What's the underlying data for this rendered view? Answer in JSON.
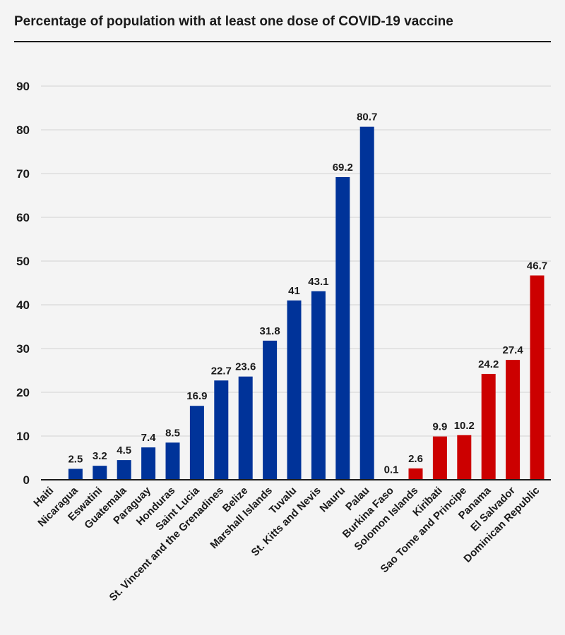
{
  "chart_data": {
    "type": "bar",
    "title": "Percentage of population with at least one dose of COVID-19 vaccine",
    "xlabel": "",
    "ylabel": "",
    "ylim": [
      0,
      90
    ],
    "yticks": [
      0,
      10,
      20,
      30,
      40,
      50,
      60,
      70,
      80,
      90
    ],
    "grid": true,
    "legend": "none",
    "colors": {
      "primary": "#003399",
      "secondary": "#cc0000"
    },
    "categories": [
      "Haiti",
      "Nicaragua",
      "Eswatini",
      "Guatemala",
      "Paraguay",
      "Honduras",
      "Saint Lucia",
      "St. Vincent and the Grenadines",
      "Belize",
      "Marshall Islands",
      "Tuvalu",
      "St. Kitts and Nevis",
      "Nauru",
      "Palau",
      "Burkina Faso",
      "Solomon Islands",
      "Kiribati",
      "Sao Tome and Principe",
      "Panama",
      "El Salvador",
      "Dominican Republic"
    ],
    "values": [
      0,
      2.5,
      3.2,
      4.5,
      7.4,
      8.5,
      16.9,
      22.7,
      23.6,
      31.8,
      41,
      43.1,
      69.2,
      80.7,
      0.1,
      2.6,
      9.9,
      10.2,
      24.2,
      27.4,
      46.7
    ],
    "value_labels": [
      "",
      "2.5",
      "3.2",
      "4.5",
      "7.4",
      "8.5",
      "16.9",
      "22.7",
      "23.6",
      "31.8",
      "41",
      "43.1",
      "69.2",
      "80.7",
      "0.1",
      "2.6",
      "9.9",
      "10.2",
      "24.2",
      "27.4",
      "46.7"
    ],
    "bar_groups": [
      "primary",
      "primary",
      "primary",
      "primary",
      "primary",
      "primary",
      "primary",
      "primary",
      "primary",
      "primary",
      "primary",
      "primary",
      "primary",
      "primary",
      "secondary",
      "secondary",
      "secondary",
      "secondary",
      "secondary",
      "secondary",
      "secondary"
    ]
  }
}
